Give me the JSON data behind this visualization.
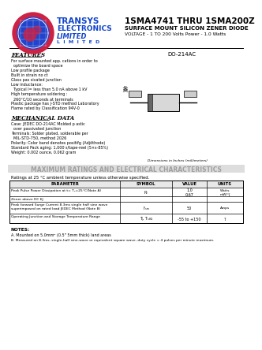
{
  "title_main": "1SMA4741 THRU 1SMA200Z",
  "title_sub1": "SURFACE MOUNT SILICON ZENER DIODE",
  "title_sub2": "VOLTAGE - 1 TO 200 Volts Power - 1.0 Watts",
  "company_name1": "TRANSYS",
  "company_name2": "ELECTRONICS",
  "company_name3": "LIMITED",
  "package_type": "DO-214AC",
  "features_title": "FEATURES",
  "features": [
    "For surface mounted app. cations in order to",
    "  optimize the board space",
    "Low profile package",
    "Built in strain no ct",
    "Glass pas sivated junction",
    "Low inductance:",
    "  Typical I= less than 5.0 nA above 1 kV",
    "High temperature soldering :",
    "  260°C/10 seconds at terminals",
    "Plastic package has J-STD method Laboratory",
    "Flame rated by Classification 94V-0"
  ],
  "mech_title": "MECHANICAL DATA",
  "mech_data": [
    "Case: JEDEC DO-214AC Molded p astic",
    "  over passivated junction",
    "Terminals: Solder plated, solderable per",
    "  MIL-STD-750, method 2026",
    "Polarity: Color band denotes positifg (Adjöthode)",
    "Standard Pack aging: 1,000 s/tape-reel (5×s-85%)",
    "Weight: 0.002 ounce, 0.062 gram"
  ],
  "watermark": "MAXIMUM RATINGS AND ELECTRICAL CHARACTERISTICS",
  "table_title": "Ratings at 25 °C ambient temperature unless otherwise specified.",
  "table_headers": [
    "PARAMETER",
    "SYMBOL",
    "VALUE",
    "UNITS"
  ],
  "notes_title": "NOTES:",
  "note_a": "A. Mounted on 5.0mm² (0.5\" 5mm thick) land areas",
  "note_b": "B. Measured on 8.3ms, single-half sine-wave or equivalent square wave, duty cycle = 4 pulses per minute maximum.",
  "bg_color": "#ffffff"
}
